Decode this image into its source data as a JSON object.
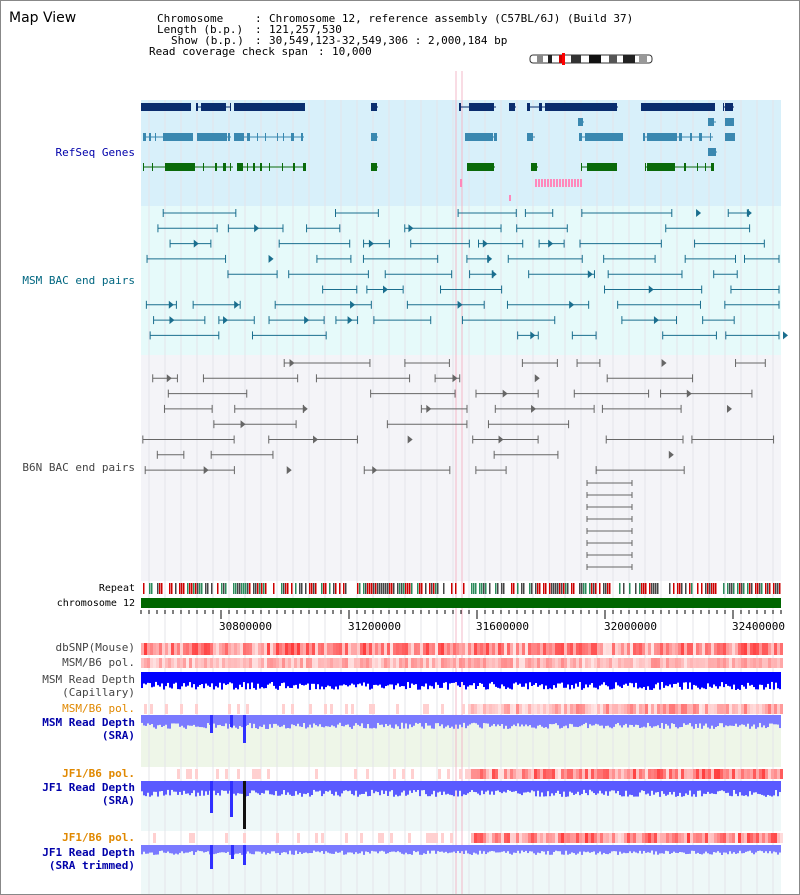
{
  "title": "Map View",
  "info": {
    "chromosome_key": "Chromosome",
    "chromosome_val": "Chromosome 12, reference assembly (C57BL/6J) (Build 37)",
    "length_key": "Length (b.p.)",
    "length_val": "121,257,530",
    "show_key": "Show (b.p.)",
    "show_val": "30,549,123-32,549,306 : 2,000,184 bp",
    "span_key": "Read coverage check span",
    "span_val": "10,000"
  },
  "tracks": {
    "refseq": "RefSeq Genes",
    "msm_bac": "MSM BAC end pairs",
    "b6n_bac": "B6N BAC end pairs",
    "repeat": "Repeat",
    "chromosome": "chromosome 12",
    "dbsnp": "dbSNP(Mouse)",
    "msm_b6_pol_1": "MSM/B6 pol.",
    "msm_depth_cap_1": "MSM Read Depth",
    "msm_depth_cap_2": "(Capillary)",
    "msm_b6_pol_2": "MSM/B6 pol.",
    "msm_depth_sra_1": "MSM Read Depth",
    "msm_depth_sra_2": "(SRA)",
    "jf1_b6_pol_1": "JF1/B6 pol.",
    "jf1_depth_sra_1": "JF1 Read Depth",
    "jf1_depth_sra_2": "(SRA)",
    "jf1_b6_pol_2": "JF1/B6 pol.",
    "jf1_depth_trim_1": "JF1 Read Depth",
    "jf1_depth_trim_2": "(SRA trimmed)"
  },
  "axis": {
    "ticks": [
      "30800000",
      "31200000",
      "31600000",
      "32000000",
      "32400000"
    ]
  },
  "colors": {
    "refseq_bg": "#d8f0fa",
    "msm_bg": "#e6fafa",
    "b6n_bg": "#f4f4f8",
    "depth_bg": "#eef6e8",
    "label_blue": "#0000aa",
    "label_teal": "#006680",
    "label_orange": "#e08800",
    "label_gray": "#444444",
    "refseq_navy": "#0a2d6e",
    "refseq_steel": "#3a88b0",
    "refseq_green": "#0a6a0a",
    "msm_line": "#1a6e8e",
    "b6n_line": "#666666",
    "chrom_green": "#006600",
    "depth_blue": "#0000ff",
    "depth_light": "#7a7aff"
  }
}
